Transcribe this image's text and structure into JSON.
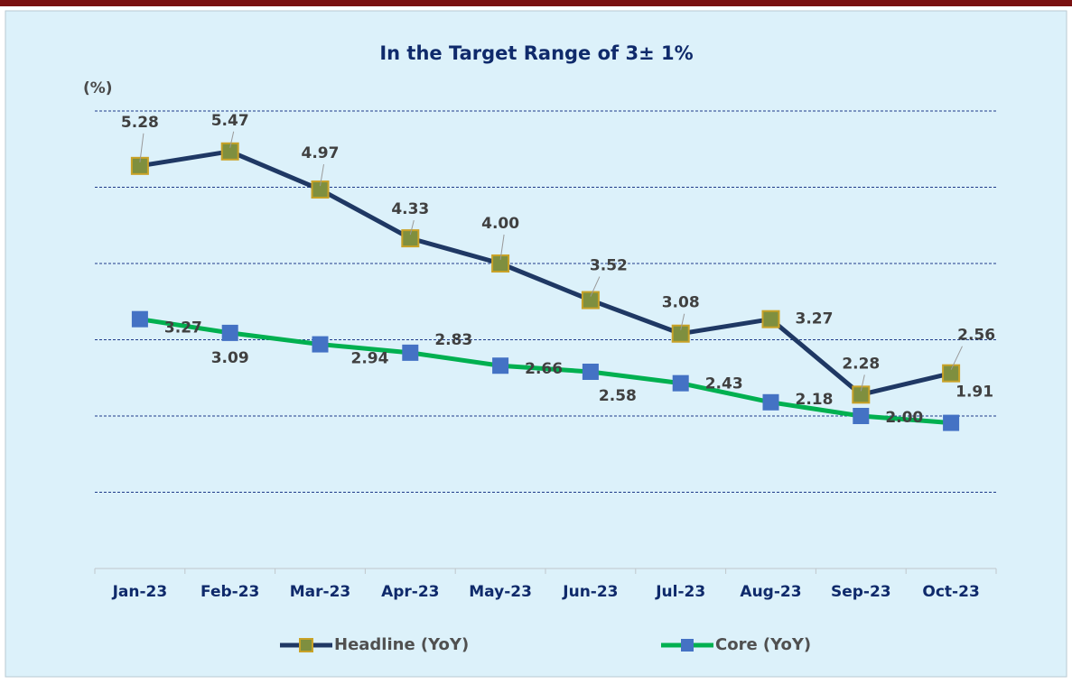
{
  "chart_data": {
    "type": "line",
    "title": "In the Target Range of 3± 1%",
    "ylabel": "(%)",
    "categories": [
      "Jan-23",
      "Feb-23",
      "Mar-23",
      "Apr-23",
      "May-23",
      "Jun-23",
      "Jul-23",
      "Aug-23",
      "Sep-23",
      "Oct-23"
    ],
    "series": [
      {
        "name": "Headline (YoY)",
        "color": "#1f3864",
        "marker_color": "#7f8f3f",
        "values": [
          5.28,
          5.47,
          4.97,
          4.33,
          4.0,
          3.52,
          3.08,
          3.27,
          2.28,
          2.56
        ],
        "value_labels": [
          "5.28",
          "5.47",
          "4.97",
          "4.33",
          "4.00",
          "3.52",
          "3.08",
          "3.27",
          "2.28",
          "2.56"
        ]
      },
      {
        "name": "Core (YoY)",
        "color": "#00b050",
        "marker_color": "#4472c4",
        "values": [
          3.27,
          3.09,
          2.94,
          2.83,
          2.66,
          2.58,
          2.43,
          2.18,
          2.0,
          1.91
        ],
        "value_labels": [
          "3.27",
          "3.09",
          "2.94",
          "2.83",
          "2.66",
          "2.58",
          "2.43",
          "2.18",
          "2.00",
          "1.91"
        ]
      }
    ],
    "ylim": [
      0,
      6
    ],
    "yticks": [
      1,
      2,
      3,
      4,
      5,
      6
    ],
    "grid": true,
    "legend": "bottom"
  }
}
